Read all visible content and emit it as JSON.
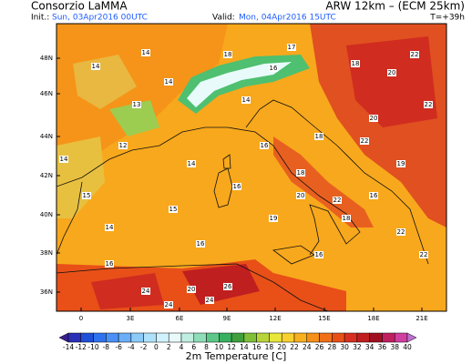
{
  "header": {
    "producer": "Consorzio LaMMA",
    "model": "ARW 12km – (ECM 25km)",
    "init_label": "Init.:",
    "init_time": "Sun, 03Apr2016 00UTC",
    "valid_label": "Valid:",
    "valid_time": "Mon, 04Apr2016 15UTC",
    "lead_time": "T=+39h"
  },
  "map": {
    "lat_labels": [
      "48N",
      "46N",
      "44N",
      "42N",
      "40N",
      "38N",
      "36N"
    ],
    "lon_labels": [
      "0",
      "3E",
      "6E",
      "9E",
      "12E",
      "15E",
      "18E",
      "21E"
    ],
    "station_values": [
      14,
      14,
      13,
      12,
      14,
      15,
      14,
      18,
      17,
      16,
      18,
      16,
      16,
      19,
      20,
      22,
      22,
      18,
      14,
      20,
      20,
      22,
      22,
      24,
      20,
      16,
      26,
      24,
      24,
      22,
      16,
      14,
      15,
      16,
      18,
      16,
      14,
      19,
      22,
      18
    ]
  },
  "colorbar": {
    "title": "2m Temperature [C]",
    "ticks": [
      -14,
      -12,
      -10,
      -8,
      -6,
      -4,
      -2,
      0,
      2,
      4,
      6,
      8,
      10,
      12,
      14,
      16,
      18,
      20,
      22,
      24,
      26,
      28,
      30,
      32,
      34,
      36,
      38,
      40
    ],
    "colors": [
      "#3b1f8f",
      "#2b2fb5",
      "#2050d8",
      "#2f72ee",
      "#4a90f5",
      "#6aaef8",
      "#8ccbf9",
      "#aee2fb",
      "#d0f2fc",
      "#e8fbfa",
      "#bfeee0",
      "#8fdcb8",
      "#5cc788",
      "#38b060",
      "#3f9f3c",
      "#7fbf3a",
      "#b8d43a",
      "#e8e63a",
      "#f8d030",
      "#f8b020",
      "#f59018",
      "#f07018",
      "#e85018",
      "#d83020",
      "#c01f1f",
      "#a01020",
      "#c02060",
      "#d040a0",
      "#c070d0"
    ]
  }
}
